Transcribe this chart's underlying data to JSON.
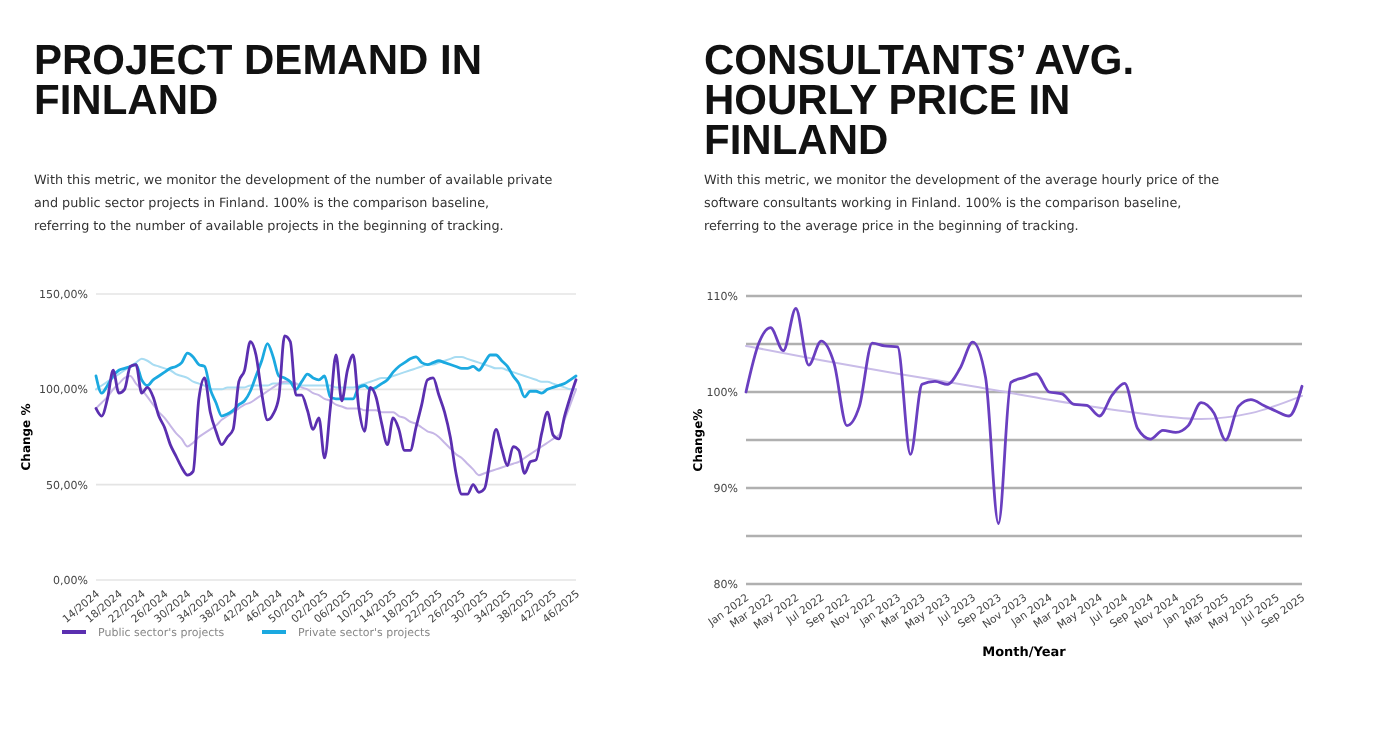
{
  "chart_data": [
    {
      "type": "line",
      "title": "PROJECT DEMAND IN FINLAND",
      "subtitle": "With this metric, we monitor the development of the number of available private and public sector projects in Finland. 100% is the comparison baseline, referring to the number of available projects in the beginning of tracking.",
      "ylabel": "Change %",
      "categories": [
        "14/2024",
        null,
        null,
        null,
        "18/2024",
        null,
        null,
        null,
        "22/2024",
        null,
        null,
        null,
        "26/2024",
        null,
        null,
        null,
        "30/2024",
        null,
        null,
        null,
        "34/2024",
        null,
        null,
        null,
        "38/2024",
        null,
        null,
        null,
        "42/2024",
        null,
        null,
        null,
        "46/2024",
        null,
        null,
        null,
        "50/2024",
        null,
        null,
        null,
        "02/2025",
        null,
        null,
        null,
        "06/2025",
        null,
        null,
        null,
        "10/2025",
        null,
        null,
        null,
        "14/2025",
        null,
        null,
        null,
        "18/2025",
        null,
        null,
        null,
        "22/2025",
        null,
        null,
        null,
        "26/2025",
        null,
        null,
        null,
        "30/2025",
        null,
        null,
        null,
        "34/2025",
        null,
        null,
        null,
        "38/2025",
        null,
        null,
        null,
        "42/2025",
        null,
        null,
        null,
        "46/2025"
      ],
      "ylim": [
        0,
        150
      ],
      "yticks": [
        {
          "value": 0,
          "label": "0,00%"
        },
        {
          "value": 50,
          "label": "50,00%"
        },
        {
          "value": 100,
          "label": "100,00%"
        },
        {
          "value": 150,
          "label": "150,00%"
        }
      ],
      "grid": "y",
      "legend": "bottom",
      "series": [
        {
          "name": "Public sector's projects",
          "color": "#5b2fb0",
          "values": [
            90,
            86,
            95,
            110,
            98,
            100,
            112,
            113,
            98,
            101,
            96,
            86,
            80,
            71,
            65,
            59,
            55,
            57,
            95,
            106,
            88,
            78,
            71,
            75,
            79,
            104,
            110,
            125,
            118,
            98,
            84,
            87,
            96,
            128,
            125,
            97,
            97,
            89,
            79,
            85,
            64,
            90,
            118,
            94,
            110,
            118,
            90,
            78,
            101,
            96,
            82,
            71,
            85,
            79,
            68,
            68,
            80,
            92,
            105,
            106,
            97,
            88,
            75,
            56,
            45,
            45,
            50,
            46,
            48,
            64,
            79,
            69,
            60,
            70,
            68,
            56,
            62,
            63,
            77,
            88,
            76,
            74,
            86,
            96,
            105
          ]
        },
        {
          "name": "Private sector's projects",
          "color": "#1ba9e0",
          "values": [
            107,
            98,
            102,
            107,
            110,
            111,
            112,
            113,
            105,
            102,
            105,
            107,
            109,
            111,
            112,
            114,
            119,
            117,
            113,
            112,
            100,
            93,
            86,
            87,
            89,
            92,
            94,
            99,
            107,
            115,
            124,
            117,
            107,
            106,
            104,
            100,
            104,
            108,
            106,
            105,
            107,
            96,
            95,
            95,
            95,
            95,
            101,
            102,
            100,
            101,
            103,
            105,
            109,
            112,
            114,
            116,
            117,
            114,
            113,
            114,
            115,
            114,
            113,
            112,
            111,
            111,
            112,
            110,
            114,
            118,
            118,
            115,
            112,
            107,
            103,
            96,
            99,
            99,
            98,
            100,
            101,
            102,
            103,
            105,
            107
          ]
        },
        {
          "color": "#c6b6e6",
          "values": [
            90,
            93,
            96,
            100,
            103,
            106,
            107,
            103,
            100,
            96,
            92,
            88,
            85,
            81,
            77,
            74,
            70,
            72,
            75,
            77,
            79,
            81,
            84,
            86,
            88,
            90,
            92,
            93,
            95,
            97,
            99,
            101,
            103,
            104,
            104,
            103,
            101,
            100,
            98,
            97,
            95,
            94,
            92,
            91,
            90,
            90,
            90,
            89,
            89,
            89,
            88,
            88,
            88,
            86,
            85,
            83,
            82,
            80,
            78,
            77,
            75,
            72,
            69,
            66,
            64,
            61,
            58,
            55,
            56,
            57,
            58,
            59,
            60,
            61,
            62,
            64,
            66,
            68,
            70,
            72,
            74,
            76,
            84,
            92,
            100
          ]
        },
        {
          "color": "#a8dcf2",
          "values": [
            100,
            102,
            104,
            106,
            108,
            110,
            112,
            114,
            116,
            115,
            113,
            112,
            111,
            110,
            108,
            107,
            106,
            104,
            103,
            102,
            100,
            100,
            100,
            101,
            101,
            101,
            101,
            102,
            102,
            102,
            102,
            103,
            103,
            103,
            103,
            103,
            102,
            102,
            102,
            102,
            102,
            102,
            101,
            101,
            101,
            101,
            102,
            103,
            104,
            105,
            106,
            106,
            107,
            108,
            109,
            110,
            111,
            112,
            113,
            113,
            114,
            115,
            116,
            117,
            117,
            116,
            115,
            114,
            113,
            112,
            111,
            111,
            110,
            109,
            108,
            107,
            106,
            105,
            104,
            104,
            103,
            102,
            101,
            100,
            100
          ]
        }
      ]
    },
    {
      "type": "line",
      "title": "CONSULTANTS’ AVG. HOURLY PRICE IN FINLAND",
      "subtitle": "With this metric, we monitor the development of the average hourly price of the software consultants working in Finland. 100% is the comparison baseline, referring to the average price in the beginning of tracking.",
      "xlabel": "Month/Year",
      "ylabel": "Change%",
      "xlim": [
        "2022-01",
        "2025-09"
      ],
      "xticks": [
        {
          "value": "2022-01",
          "label": "Jan 2022"
        },
        {
          "value": "2022-03",
          "label": "Mar 2022"
        },
        {
          "value": "2022-05",
          "label": "May 2022"
        },
        {
          "value": "2022-07",
          "label": "Jul 2022"
        },
        {
          "value": "2022-09",
          "label": "Sep 2022"
        },
        {
          "value": "2022-11",
          "label": "Nov 2022"
        },
        {
          "value": "2023-01",
          "label": "Jan 2023"
        },
        {
          "value": "2023-03",
          "label": "Mar 2023"
        },
        {
          "value": "2023-05",
          "label": "May 2023"
        },
        {
          "value": "2023-07",
          "label": "Jul 2023"
        },
        {
          "value": "2023-09",
          "label": "Sep 2023"
        },
        {
          "value": "2023-11",
          "label": "Nov 2023"
        },
        {
          "value": "2024-01",
          "label": "Jan 2024"
        },
        {
          "value": "2024-03",
          "label": "Mar 2024"
        },
        {
          "value": "2024-05",
          "label": "May 2024"
        },
        {
          "value": "2024-07",
          "label": "Jul 2024"
        },
        {
          "value": "2024-09",
          "label": "Sep 2024"
        },
        {
          "value": "2024-11",
          "label": "Nov 2024"
        },
        {
          "value": "2025-01",
          "label": "Jan 2025"
        },
        {
          "value": "2025-03",
          "label": "Mar 2025"
        },
        {
          "value": "2025-05",
          "label": "May 2025"
        },
        {
          "value": "2025-07",
          "label": "Jul 2025"
        },
        {
          "value": "2025-09",
          "label": "Sep 2025"
        }
      ],
      "ylim": [
        80,
        110
      ],
      "yticks": [
        {
          "value": 80,
          "label": "80%"
        },
        {
          "value": 85,
          "label": null
        },
        {
          "value": 90,
          "label": "90%"
        },
        {
          "value": 95,
          "label": null
        },
        {
          "value": 100,
          "label": "100%"
        },
        {
          "value": 105,
          "label": null
        },
        {
          "value": 110,
          "label": "110%"
        }
      ],
      "grid": "y",
      "series": [
        {
          "color": "#6a3fc0",
          "x": [
            "2022-01",
            "2022-02",
            "2022-03",
            "2022-04",
            "2022-05",
            "2022-06",
            "2022-07",
            "2022-08",
            "2022-09",
            "2022-10",
            "2022-11",
            "2022-12",
            "2023-01",
            "2023-02",
            "2023-03",
            "2023-04",
            "2023-05",
            "2023-06",
            "2023-07",
            "2023-08",
            "2023-09",
            "2023-10",
            "2023-11",
            "2023-12",
            "2024-01",
            "2024-02",
            "2024-03",
            "2024-04",
            "2024-05",
            "2024-06",
            "2024-07",
            "2024-08",
            "2024-09",
            "2024-10",
            "2024-11",
            "2024-12",
            "2025-01",
            "2025-02",
            "2025-03",
            "2025-04",
            "2025-05",
            "2025-06",
            "2025-07",
            "2025-08",
            "2025-09"
          ],
          "values": [
            100,
            105.1,
            106.7,
            104.3,
            108.7,
            102.8,
            105.3,
            103,
            96.5,
            98.5,
            105.1,
            104.8,
            104.7,
            93.5,
            100.8,
            101.1,
            100.8,
            102.5,
            105.2,
            101.5,
            86.3,
            101,
            101.5,
            101.9,
            100,
            99.8,
            98.7,
            98.6,
            97.5,
            99.7,
            100.9,
            96.2,
            95.1,
            96,
            95.8,
            96.5,
            98.9,
            97.8,
            95,
            98.5,
            99.2,
            98.6,
            98,
            97.5,
            100.6
          ]
        },
        {
          "color": "#c9bce8",
          "x": [
            "2022-01",
            "2022-07",
            "2023-01",
            "2023-07",
            "2024-01",
            "2024-07",
            "2025-01",
            "2025-05",
            "2025-09"
          ],
          "values": [
            104.8,
            103.3,
            101.9,
            100.6,
            99.2,
            98,
            97.2,
            97.8,
            99.6
          ]
        }
      ]
    }
  ]
}
